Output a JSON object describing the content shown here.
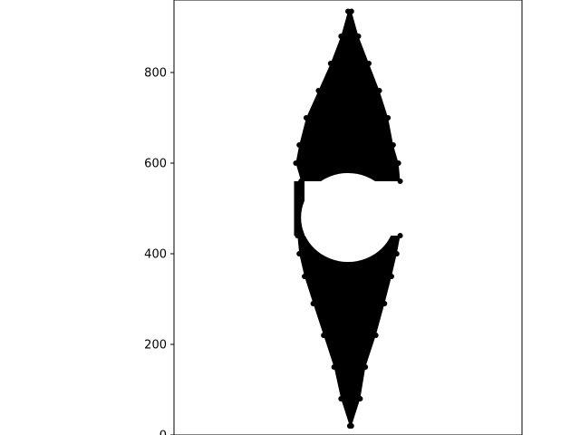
{
  "chart_data": {
    "type": "scatter",
    "title": "",
    "xlabel": "",
    "ylabel": "",
    "xlim": [
      0,
      100
    ],
    "ylim": [
      0,
      960
    ],
    "x_ticks_visible": false,
    "y_ticks": [
      0,
      200,
      400,
      600,
      800
    ],
    "y_tick_labels": [
      "0",
      "200",
      "400",
      "600",
      "800"
    ],
    "grid": false,
    "legend": "none",
    "point_color": "#000000",
    "background_color": "#ffffff",
    "description_of_points": [],
    "series": [
      {
        "upper_lobe": {
          "tip_y": 935,
          "hole_top_y": 575,
          "profile": [
            {
              "y": 935,
              "x_left": 50.0,
              "x_right": 51.0
            },
            {
              "y": 880,
              "x_left": 48.0,
              "x_right": 53.0
            },
            {
              "y": 820,
              "x_left": 45.0,
              "x_right": 56.0
            },
            {
              "y": 760,
              "x_left": 41.5,
              "x_right": 59.0
            },
            {
              "y": 700,
              "x_left": 38.0,
              "x_right": 61.5
            },
            {
              "y": 640,
              "x_left": 36.0,
              "x_right": 63.0
            },
            {
              "y": 600,
              "x_left": 35.0,
              "x_right": 64.5
            },
            {
              "y": 560,
              "x_left": 36.5,
              "x_right": 65.0
            }
          ]
        },
        "lower_lobe": {
          "tip_y": 20,
          "hole_bottom_y": 385,
          "profile": [
            {
              "y": 20,
              "x_left": 50.5,
              "x_right": 51.0
            },
            {
              "y": 80,
              "x_left": 48.0,
              "x_right": 53.5
            },
            {
              "y": 150,
              "x_left": 46.0,
              "x_right": 55.0
            },
            {
              "y": 220,
              "x_left": 43.0,
              "x_right": 58.0
            },
            {
              "y": 290,
              "x_left": 40.0,
              "x_right": 60.5
            },
            {
              "y": 350,
              "x_left": 37.5,
              "x_right": 62.5
            },
            {
              "y": 400,
              "x_left": 36.0,
              "x_right": 64.0
            },
            {
              "y": 440,
              "x_left": 35.5,
              "x_right": 65.0
            }
          ]
        },
        "left_bridge": {
          "y_top": 560,
          "y_bottom": 440,
          "x": 36.0
        },
        "hole": {
          "cx": 50.0,
          "cy": 480,
          "rx": 13.5,
          "ry": 98
        }
      }
    ]
  }
}
